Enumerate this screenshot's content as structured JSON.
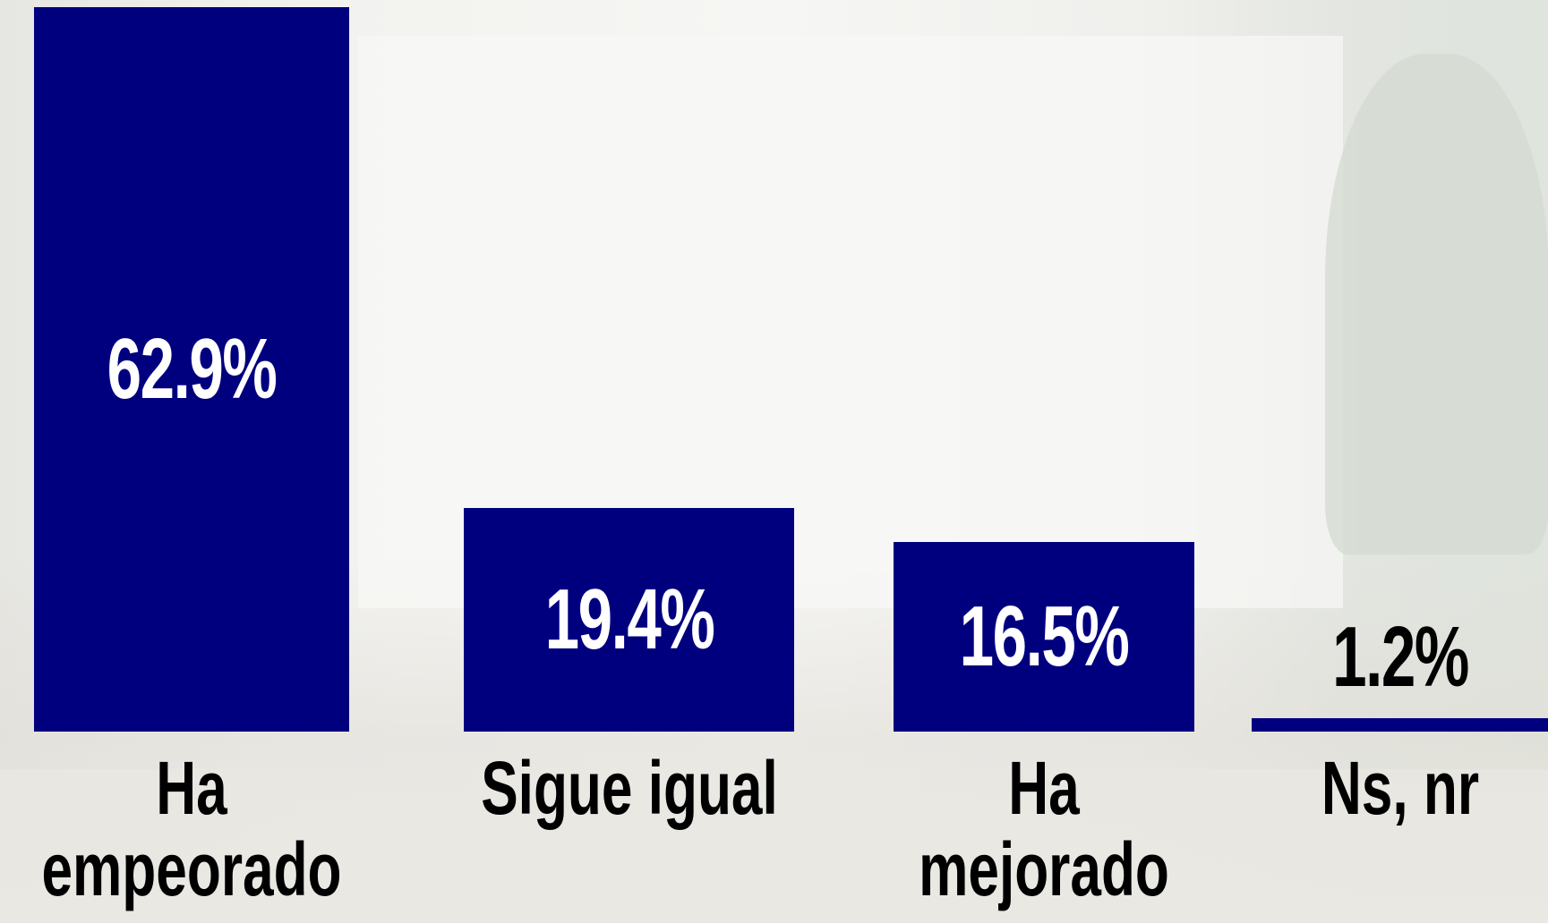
{
  "chart_data": {
    "type": "bar",
    "categories": [
      "Ha empeorado",
      "Sigue igual",
      "Ha mejorado",
      "Ns, nr"
    ],
    "values": [
      62.9,
      19.4,
      16.5,
      1.2
    ],
    "value_labels": [
      "62.9%",
      "19.4%",
      "16.5%",
      "1.2%"
    ],
    "color": "#00007f"
  }
}
